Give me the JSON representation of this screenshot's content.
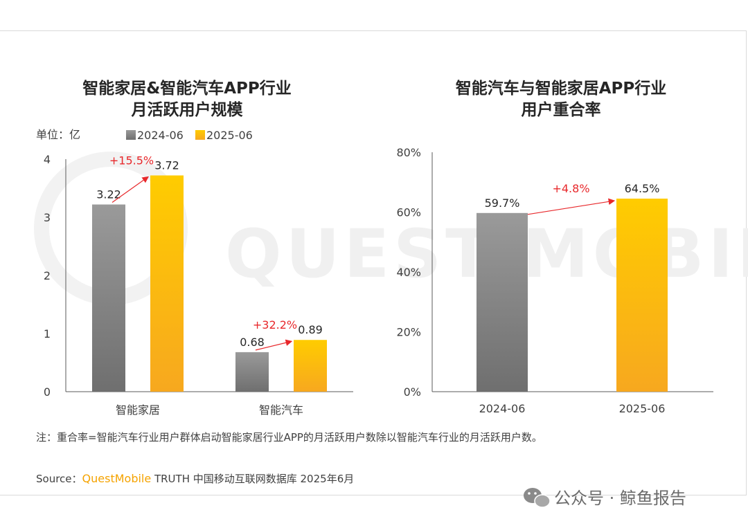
{
  "watermark": "QUEST MOBILE",
  "chart_data": [
    {
      "type": "bar",
      "title": [
        "智能家居&智能汽车APP行业",
        "月活跃用户规模"
      ],
      "unit_label": "单位：亿",
      "categories": [
        "智能家居",
        "智能汽车"
      ],
      "series": [
        {
          "name": "2024-06",
          "values": [
            3.22,
            0.68
          ]
        },
        {
          "name": "2025-06",
          "values": [
            3.72,
            0.89
          ]
        }
      ],
      "data_labels": [
        [
          "3.22",
          "0.68"
        ],
        [
          "3.72",
          "0.89"
        ]
      ],
      "growth_labels": [
        "+15.5%",
        "+32.2%"
      ],
      "yticks": [
        "0",
        "1",
        "2",
        "3",
        "4"
      ],
      "ylim": [
        0,
        4
      ],
      "legend_position": "top",
      "grid": false
    },
    {
      "type": "bar",
      "title": [
        "智能汽车与智能家居APP行业",
        "用户重合率"
      ],
      "categories": [
        "2024-06",
        "2025-06"
      ],
      "values": [
        59.7,
        64.5
      ],
      "data_labels": [
        "59.7%",
        "64.5%"
      ],
      "growth_label": "+4.8%",
      "yticks": [
        "0%",
        "20%",
        "40%",
        "60%",
        "80%"
      ],
      "ylim": [
        0,
        80
      ],
      "grid": false
    }
  ],
  "colors": {
    "gray_top": "#9a9a9a",
    "gray_bottom": "#6f6f6f",
    "gold_top": "#ffcc00",
    "gold_bottom": "#f7a81f",
    "arrow": "#e8282b"
  },
  "note": "注：重合率=智能汽车行业用户群体启动智能家居行业APP的月活跃用户数除以智能汽车行业的月活跃用户数。",
  "source": {
    "prefix": "Source：",
    "brand": "QuestMobile",
    "suffix": " TRUTH 中国移动互联网数据库 2025年6月"
  },
  "wechat": "公众号 · 鲸鱼报告"
}
